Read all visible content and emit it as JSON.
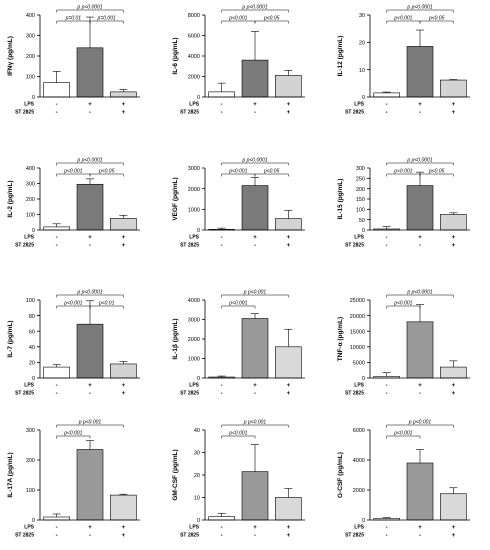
{
  "chart_data": [
    {
      "type": "bar",
      "ylabel": "IFNγ (pg/mL)",
      "ylim": [
        0,
        400
      ],
      "yticks": [
        0,
        100,
        200,
        300,
        400
      ],
      "values": [
        70,
        240,
        25
      ],
      "errors": [
        55,
        150,
        12
      ],
      "colors": [
        "#ffffff",
        "#7a7a7a",
        "#d3d3d3"
      ],
      "conditions": [
        {
          "label": "LPS",
          "marks": [
            "-",
            "+",
            "+"
          ]
        },
        {
          "label": "ST 2825",
          "marks": [
            "-",
            "-",
            "+"
          ]
        }
      ],
      "brackets": [
        {
          "from": 0,
          "to": 2,
          "text": "p<0.0001",
          "prefix": "p"
        },
        {
          "from": 0,
          "to": 1,
          "text": "p=0.01",
          "prefix": ""
        },
        {
          "from": 1,
          "to": 2,
          "text": "p=0.001",
          "prefix": ""
        }
      ]
    },
    {
      "type": "bar",
      "ylabel": "IL-6 (pg/mL)",
      "ylim": [
        0,
        8000
      ],
      "yticks": [
        0,
        2000,
        4000,
        6000,
        8000
      ],
      "values": [
        500,
        3600,
        2100
      ],
      "errors": [
        850,
        2800,
        500
      ],
      "colors": [
        "#ffffff",
        "#7a7a7a",
        "#d3d3d3"
      ],
      "conditions": [
        {
          "label": "LPS",
          "marks": [
            "-",
            "+",
            "+"
          ]
        },
        {
          "label": "ST 2825",
          "marks": [
            "-",
            "-",
            "+"
          ]
        }
      ],
      "brackets": [
        {
          "from": 0,
          "to": 2,
          "text": "p<0.0001",
          "prefix": "p"
        },
        {
          "from": 0,
          "to": 1,
          "text": "p<0.001",
          "prefix": ""
        },
        {
          "from": 1,
          "to": 2,
          "text": "p<0.05",
          "prefix": ""
        }
      ]
    },
    {
      "type": "bar",
      "ylabel": "IL-12 (pg/mL)",
      "ylim": [
        0,
        30
      ],
      "yticks": [
        0,
        10,
        20,
        30
      ],
      "values": [
        1.5,
        18.5,
        6.2
      ],
      "errors": [
        0.3,
        6,
        0.2
      ],
      "colors": [
        "#ffffff",
        "#7a7a7a",
        "#d3d3d3"
      ],
      "conditions": [
        {
          "label": "LPS",
          "marks": [
            "-",
            "+",
            "+"
          ]
        },
        {
          "label": "ST 2825",
          "marks": [
            "-",
            "-",
            "+"
          ]
        }
      ],
      "brackets": [
        {
          "from": 0,
          "to": 2,
          "text": "p<0.0001",
          "prefix": "p"
        },
        {
          "from": 0,
          "to": 1,
          "text": "p<0.001",
          "prefix": ""
        },
        {
          "from": 1,
          "to": 2,
          "text": "p<0.05",
          "prefix": ""
        }
      ]
    },
    {
      "type": "bar",
      "ylabel": "IL-2 (pg/mL)",
      "ylim": [
        0,
        400
      ],
      "yticks": [
        0,
        100,
        200,
        300,
        400
      ],
      "values": [
        20,
        295,
        75
      ],
      "errors": [
        20,
        35,
        20
      ],
      "colors": [
        "#ffffff",
        "#7a7a7a",
        "#d3d3d3"
      ],
      "conditions": [
        {
          "label": "LPS",
          "marks": [
            "-",
            "+",
            "+"
          ]
        },
        {
          "label": "ST 2825",
          "marks": [
            "-",
            "-",
            "+"
          ]
        }
      ],
      "brackets": [
        {
          "from": 0,
          "to": 2,
          "text": "p<0.0001",
          "prefix": "p"
        },
        {
          "from": 0,
          "to": 1,
          "text": "p<0.001",
          "prefix": ""
        },
        {
          "from": 1,
          "to": 2,
          "text": "p<0.05",
          "prefix": ""
        }
      ]
    },
    {
      "type": "bar",
      "ylabel": "VEGF (pg/mL)",
      "ylim": [
        0,
        3000
      ],
      "yticks": [
        0,
        1000,
        2000,
        3000
      ],
      "values": [
        30,
        2150,
        550
      ],
      "errors": [
        60,
        400,
        400
      ],
      "colors": [
        "#ffffff",
        "#7a7a7a",
        "#d3d3d3"
      ],
      "conditions": [
        {
          "label": "LPS",
          "marks": [
            "-",
            "+",
            "+"
          ]
        },
        {
          "label": "ST 2825",
          "marks": [
            "-",
            "-",
            "+"
          ]
        }
      ],
      "brackets": [
        {
          "from": 0,
          "to": 2,
          "text": "p<0.0001",
          "prefix": "p"
        },
        {
          "from": 0,
          "to": 1,
          "text": "p<0.001",
          "prefix": ""
        },
        {
          "from": 1,
          "to": 2,
          "text": "p<0.05",
          "prefix": ""
        }
      ]
    },
    {
      "type": "bar",
      "ylabel": "IL-15 (pg/mL)",
      "ylim": [
        0,
        300
      ],
      "yticks": [
        0,
        50,
        100,
        150,
        200,
        250,
        300
      ],
      "values": [
        5,
        215,
        75
      ],
      "errors": [
        12,
        65,
        8
      ],
      "colors": [
        "#ffffff",
        "#7a7a7a",
        "#d3d3d3"
      ],
      "conditions": [
        {
          "label": "LPS",
          "marks": [
            "-",
            "+",
            "+"
          ]
        },
        {
          "label": "ST 2825",
          "marks": [
            "-",
            "-",
            "+"
          ]
        }
      ],
      "brackets": [
        {
          "from": 0,
          "to": 2,
          "text": "p<0.0001",
          "prefix": "p"
        },
        {
          "from": 0,
          "to": 1,
          "text": "p<0.001",
          "prefix": ""
        },
        {
          "from": 1,
          "to": 2,
          "text": "p<0.05",
          "prefix": ""
        }
      ]
    },
    {
      "type": "bar",
      "ylabel": "IL-7 (pg/mL)",
      "ylim": [
        0,
        100
      ],
      "yticks": [
        0,
        20,
        40,
        60,
        80,
        100
      ],
      "values": [
        14,
        69,
        18
      ],
      "errors": [
        3,
        30,
        3
      ],
      "colors": [
        "#ffffff",
        "#7a7a7a",
        "#d3d3d3"
      ],
      "conditions": [
        {
          "label": "LPS",
          "marks": [
            "-",
            "+",
            "+"
          ]
        },
        {
          "label": "ST 2825",
          "marks": [
            "-",
            "-",
            "+"
          ]
        }
      ],
      "brackets": [
        {
          "from": 0,
          "to": 2,
          "text": "p<0.0001",
          "prefix": "p"
        },
        {
          "from": 0,
          "to": 1,
          "text": "p<0.001",
          "prefix": ""
        },
        {
          "from": 1,
          "to": 2,
          "text": "p<0.01",
          "prefix": ""
        }
      ]
    },
    {
      "type": "bar",
      "ylabel": "IL-1β (pg/mL)",
      "ylim": [
        0,
        4000
      ],
      "yticks": [
        0,
        1000,
        2000,
        3000,
        4000
      ],
      "values": [
        50,
        3050,
        1600
      ],
      "errors": [
        50,
        250,
        900
      ],
      "colors": [
        "#ffffff",
        "#999999",
        "#d9d9d9"
      ],
      "conditions": [
        {
          "label": "LPS",
          "marks": [
            "-",
            "+",
            "+"
          ]
        },
        {
          "label": "ST 2825",
          "marks": [
            "-",
            "-",
            "+"
          ]
        }
      ],
      "brackets": [
        {
          "from": 0,
          "to": 2,
          "text": "p<0.001",
          "prefix": "p"
        },
        {
          "from": 0,
          "to": 1,
          "text": "p<0.001",
          "prefix": ""
        }
      ]
    },
    {
      "type": "bar",
      "ylabel": "TNF-α (pg/mL)",
      "ylim": [
        0,
        25000
      ],
      "yticks": [
        0,
        5000,
        10000,
        15000,
        20000,
        25000
      ],
      "values": [
        500,
        18000,
        3500
      ],
      "errors": [
        1200,
        5500,
        2000
      ],
      "colors": [
        "#ffffff",
        "#999999",
        "#d9d9d9"
      ],
      "conditions": [
        {
          "label": "LPS",
          "marks": [
            "-",
            "+",
            "+"
          ]
        },
        {
          "label": "ST 2825",
          "marks": [
            "-",
            "-",
            "+"
          ]
        }
      ],
      "brackets": [
        {
          "from": 0,
          "to": 2,
          "text": "p<0.0001",
          "prefix": "p"
        },
        {
          "from": 0,
          "to": 1,
          "text": "p<0.001",
          "prefix": ""
        }
      ]
    },
    {
      "type": "bar",
      "ylabel": "IL-17A (pg/mL)",
      "ylim": [
        0,
        300
      ],
      "yticks": [
        0,
        100,
        200,
        300
      ],
      "values": [
        10,
        235,
        83
      ],
      "errors": [
        10,
        30,
        3
      ],
      "colors": [
        "#ffffff",
        "#999999",
        "#d9d9d9"
      ],
      "conditions": [
        {
          "label": "LPS",
          "marks": [
            "-",
            "+",
            "+"
          ]
        },
        {
          "label": "ST 2825",
          "marks": [
            "-",
            "-",
            "+"
          ]
        }
      ],
      "brackets": [
        {
          "from": 0,
          "to": 2,
          "text": "p<0.001",
          "prefix": "p"
        },
        {
          "from": 0,
          "to": 1,
          "text": "p<0.001",
          "prefix": ""
        }
      ]
    },
    {
      "type": "bar",
      "ylabel": "GM-CSF (pg/mL)",
      "ylim": [
        0,
        40
      ],
      "yticks": [
        0,
        10,
        20,
        30,
        40
      ],
      "values": [
        1.5,
        21.5,
        10
      ],
      "errors": [
        1.5,
        12,
        4
      ],
      "colors": [
        "#ffffff",
        "#999999",
        "#d9d9d9"
      ],
      "conditions": [
        {
          "label": "LPS",
          "marks": [
            "-",
            "+",
            "+"
          ]
        },
        {
          "label": "ST 2825",
          "marks": [
            "-",
            "-",
            "+"
          ]
        }
      ],
      "brackets": [
        {
          "from": 0,
          "to": 2,
          "text": "p<0.001",
          "prefix": "p"
        },
        {
          "from": 0,
          "to": 1,
          "text": "p<0.001",
          "prefix": ""
        }
      ]
    },
    {
      "type": "bar",
      "ylabel": "G-CSF (pg/mL)",
      "ylim": [
        0,
        6000
      ],
      "yticks": [
        0,
        2000,
        4000,
        6000
      ],
      "values": [
        100,
        3800,
        1750
      ],
      "errors": [
        60,
        900,
        400
      ],
      "colors": [
        "#ffffff",
        "#999999",
        "#d9d9d9"
      ],
      "conditions": [
        {
          "label": "LPS",
          "marks": [
            "-",
            "+",
            "+"
          ]
        },
        {
          "label": "ST 2825",
          "marks": [
            "-",
            "-",
            "+"
          ]
        }
      ],
      "brackets": [
        {
          "from": 0,
          "to": 2,
          "text": "p<0.001",
          "prefix": "p"
        },
        {
          "from": 0,
          "to": 1,
          "text": "p<0.001",
          "prefix": ""
        }
      ]
    }
  ]
}
